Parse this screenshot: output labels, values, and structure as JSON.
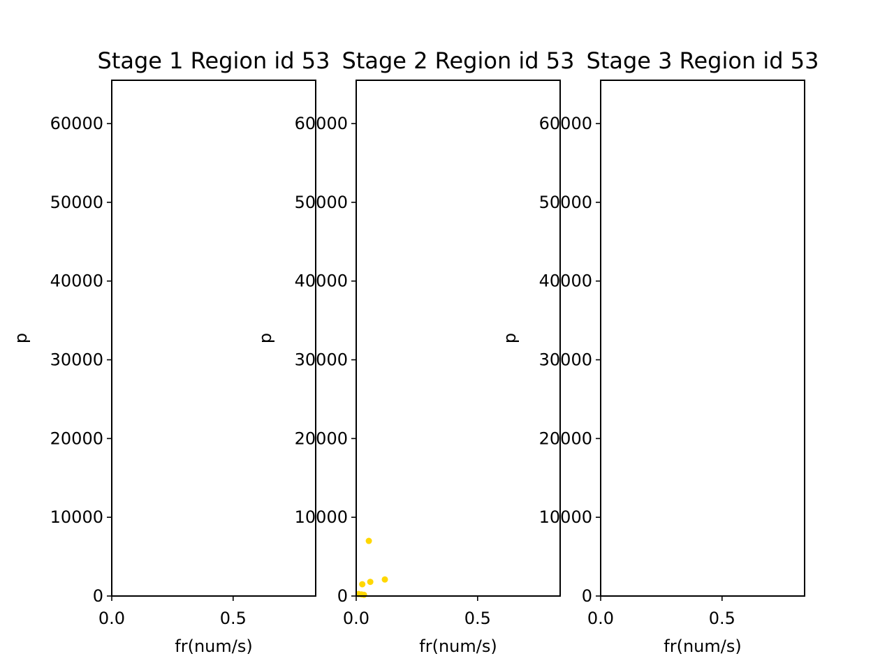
{
  "chart_data": [
    {
      "type": "scatter",
      "title": "Stage 1 Region id 53",
      "xlabel": "fr(num/s)",
      "ylabel": "p",
      "xlim": [
        0,
        0.84
      ],
      "ylim": [
        0,
        65500
      ],
      "x_ticks": [
        0.0,
        0.5
      ],
      "x_tick_labels": [
        "0.0",
        "0.5"
      ],
      "y_ticks": [
        0,
        10000,
        20000,
        30000,
        40000,
        50000,
        60000
      ],
      "y_tick_labels": [
        "0",
        "10000",
        "20000",
        "30000",
        "40000",
        "50000",
        "60000"
      ],
      "grid": false,
      "marker_color": "#ffd700",
      "points": []
    },
    {
      "type": "scatter",
      "title": "Stage 2 Region id 53",
      "xlabel": "fr(num/s)",
      "ylabel": "p",
      "xlim": [
        0,
        0.84
      ],
      "ylim": [
        0,
        65500
      ],
      "x_ticks": [
        0.0,
        0.5
      ],
      "x_tick_labels": [
        "0.0",
        "0.5"
      ],
      "y_ticks": [
        0,
        10000,
        20000,
        30000,
        40000,
        50000,
        60000
      ],
      "y_tick_labels": [
        "0",
        "10000",
        "20000",
        "30000",
        "40000",
        "50000",
        "60000"
      ],
      "grid": false,
      "marker_color": "#ffd700",
      "points": [
        {
          "x": 0.052,
          "y": 7000
        },
        {
          "x": 0.118,
          "y": 2100
        },
        {
          "x": 0.058,
          "y": 1800
        },
        {
          "x": 0.025,
          "y": 1500
        },
        {
          "x": 0.01,
          "y": 250
        },
        {
          "x": 0.022,
          "y": 200
        },
        {
          "x": 0.032,
          "y": 150
        }
      ]
    },
    {
      "type": "scatter",
      "title": "Stage 3 Region id 53",
      "xlabel": "fr(num/s)",
      "ylabel": "p",
      "xlim": [
        0,
        0.84
      ],
      "ylim": [
        0,
        65500
      ],
      "x_ticks": [
        0.0,
        0.5
      ],
      "x_tick_labels": [
        "0.0",
        "0.5"
      ],
      "y_ticks": [
        0,
        10000,
        20000,
        30000,
        40000,
        50000,
        60000
      ],
      "y_tick_labels": [
        "0",
        "10000",
        "20000",
        "30000",
        "40000",
        "50000",
        "60000"
      ],
      "grid": false,
      "marker_color": "#ffd700",
      "points": []
    }
  ]
}
